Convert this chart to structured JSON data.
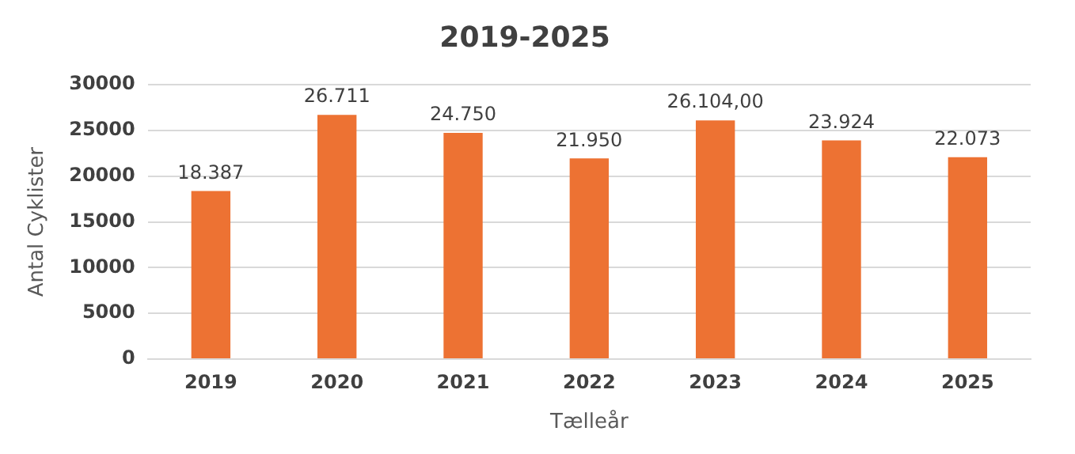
{
  "chart_data": {
    "type": "bar",
    "title": "2019-2025",
    "xlabel": "Tælleår",
    "ylabel": "Antal Cyklister",
    "categories": [
      "2019",
      "2020",
      "2021",
      "2022",
      "2023",
      "2024",
      "2025"
    ],
    "series": [
      {
        "color": "#ed7233",
        "values": [
          18387,
          26711,
          24750,
          21950,
          26104,
          23924,
          22073
        ],
        "value_labels": [
          "18.387",
          "26.711",
          "24.750",
          "21.950",
          "26.104,00",
          "23.924",
          "22.073"
        ]
      }
    ],
    "ylim": [
      0,
      30000
    ],
    "yticks": [
      0,
      5000,
      10000,
      15000,
      20000,
      25000,
      30000
    ],
    "grid": "y",
    "legend": false
  }
}
